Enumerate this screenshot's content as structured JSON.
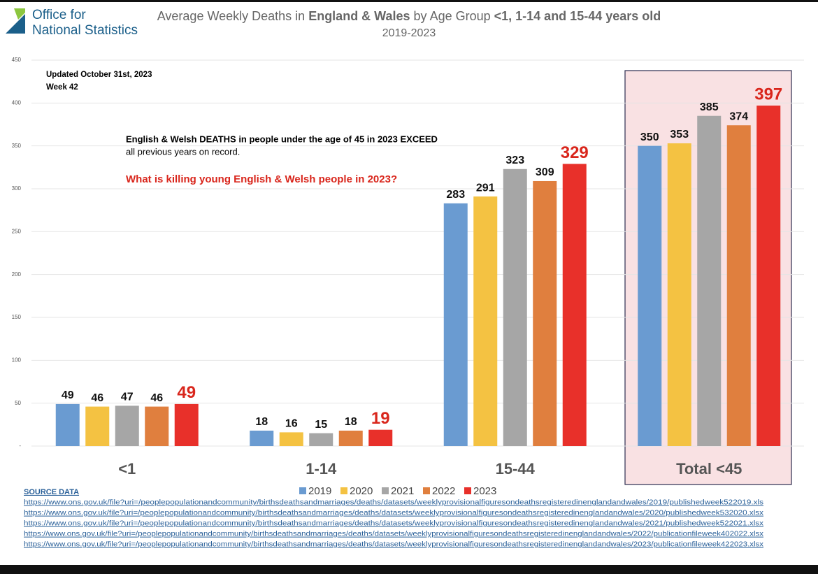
{
  "logo": [
    "Office for",
    "National Statistics"
  ],
  "chart_data": {
    "type": "bar",
    "title": [
      "Average Weekly Deaths in ",
      "England & Wales",
      " by Age Group ",
      "<1, 1-14 and 15-44 years old"
    ],
    "subtitle": "2019-2023",
    "annotations": {
      "updated": "Updated October 31st, 2023",
      "week": "Week 42",
      "note": [
        "English & Welsh DEATHS in people under the age of 45 in 2023 EXCEED",
        "all previous years on record."
      ],
      "question": "What is killing young English & Welsh people in 2023?"
    },
    "categories": [
      "<1",
      "1-14",
      "15-44",
      "Total <45"
    ],
    "series": [
      {
        "name": "2019",
        "color": "#6a9bd1",
        "values": [
          49,
          18,
          283,
          350
        ]
      },
      {
        "name": "2020",
        "color": "#f4c242",
        "values": [
          46,
          16,
          291,
          353
        ]
      },
      {
        "name": "2021",
        "color": "#a6a6a6",
        "values": [
          47,
          15,
          323,
          385
        ]
      },
      {
        "name": "2022",
        "color": "#e07f3e",
        "values": [
          46,
          18,
          309,
          374
        ]
      },
      {
        "name": "2023",
        "color": "#e8302a",
        "values": [
          49,
          19,
          329,
          397
        ]
      }
    ],
    "ylim": [
      0,
      450
    ],
    "yticks": [
      {
        "value": 0,
        "label": "-"
      },
      50,
      100,
      150,
      200,
      250,
      300,
      350,
      400,
      450
    ],
    "grid": true
  },
  "source": {
    "heading": "SOURCE DATA",
    "links": [
      "https://www.ons.gov.uk/file?uri=/peoplepopulationandcommunity/birthsdeathsandmarriages/deaths/datasets/weeklyprovisionalfiguresondeathsregisteredinenglandandwales/2019/publishedweek522019.xls",
      "https://www.ons.gov.uk/file?uri=/peoplepopulationandcommunity/birthsdeathsandmarriages/deaths/datasets/weeklyprovisionalfiguresondeathsregisteredinenglandandwales/2020/publishedweek532020.xlsx",
      "https://www.ons.gov.uk/file?uri=/peoplepopulationandcommunity/birthsdeathsandmarriages/deaths/datasets/weeklyprovisionalfiguresondeathsregisteredinenglandandwales/2021/publishedweek522021.xlsx",
      "https://www.ons.gov.uk/file?uri=/peoplepopulationandcommunity/birthsdeathsandmarriages/deaths/datasets/weeklyprovisionalfiguresondeathsregisteredinenglandandwales/2022/publicationfileweek402022.xlsx",
      "https://www.ons.gov.uk/file?uri=/peoplepopulationandcommunity/birthsdeathsandmarriages/deaths/datasets/weeklyprovisionalfiguresondeathsregisteredinenglandandwales/2023/publicationfileweek422023.xlsx"
    ]
  }
}
